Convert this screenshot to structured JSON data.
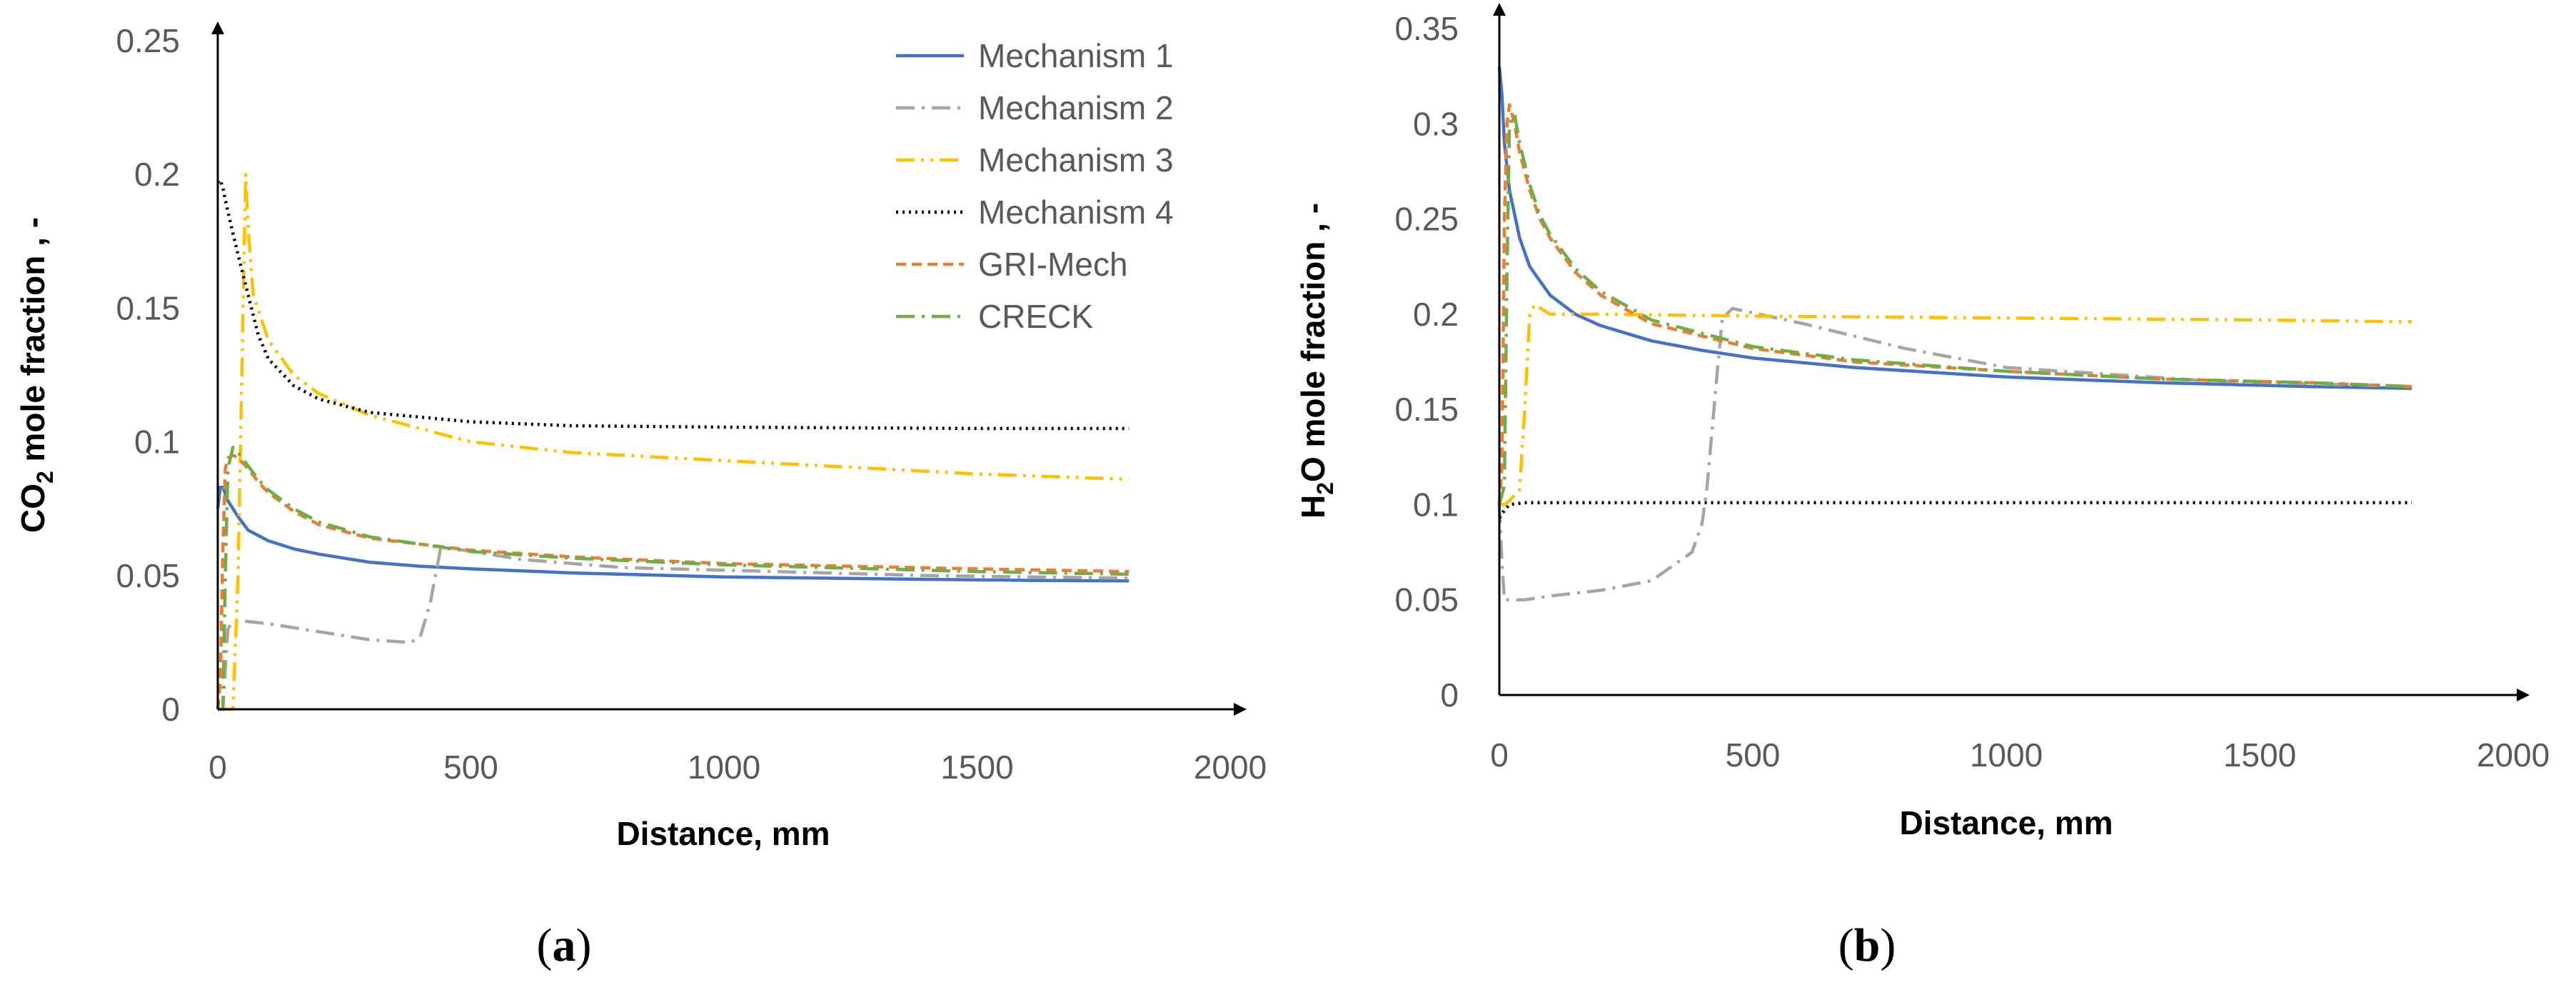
{
  "figure": {
    "panels": [
      {
        "label_open": "(",
        "label_letter": "a",
        "label_close": ")"
      },
      {
        "label_open": "(",
        "label_letter": "b",
        "label_close": ")"
      }
    ]
  },
  "legend": {
    "entries": [
      {
        "name": "Mechanism 1",
        "color": "#4472C4",
        "dash": "solid"
      },
      {
        "name": "Mechanism 2",
        "color": "#A5A5A5",
        "dash": "dashdot"
      },
      {
        "name": "Mechanism 3",
        "color": "#FFC000",
        "dash": "dashdotdot"
      },
      {
        "name": "Mechanism 4",
        "color": "#000000",
        "dash": "dotted"
      },
      {
        "name": "GRI-Mech",
        "color": "#ED7D31",
        "dash": "dashed"
      },
      {
        "name": "CRECK",
        "color": "#70AD47",
        "dash": "dashdot"
      }
    ]
  },
  "chart_data": [
    {
      "type": "line",
      "panel": "a",
      "ylabel_prefix": "CO",
      "ylabel_sub": "2",
      "ylabel_suffix": " mole fraction , -",
      "xlabel": "Distance, mm",
      "xlim": [
        0,
        2000
      ],
      "ylim": [
        0,
        0.25
      ],
      "xticks": [
        0,
        500,
        1000,
        1500,
        2000
      ],
      "xtick_labels": [
        "0",
        "500",
        "1000",
        "1500",
        "2000"
      ],
      "yticks": [
        0,
        0.05,
        0.1,
        0.15,
        0.2,
        0.25
      ],
      "ytick_labels": [
        "0",
        "0.05",
        "0.1",
        "0.15",
        "0.2",
        "0.25"
      ],
      "grid": false,
      "legend_position": "top-right",
      "series": [
        {
          "name": "Mechanism 1",
          "x": [
            0,
            5,
            10,
            20,
            40,
            60,
            100,
            150,
            200,
            300,
            400,
            500,
            700,
            1000,
            1300,
            1600,
            1800
          ],
          "y": [
            0.075,
            0.083,
            0.083,
            0.078,
            0.072,
            0.067,
            0.063,
            0.06,
            0.058,
            0.055,
            0.0535,
            0.0525,
            0.051,
            0.0495,
            0.0488,
            0.0482,
            0.048
          ]
        },
        {
          "name": "Mechanism 2",
          "x": [
            0,
            10,
            20,
            30,
            50,
            100,
            200,
            300,
            380,
            400,
            420,
            440,
            470,
            600,
            800,
            1000,
            1400,
            1800
          ],
          "y": [
            0,
            0,
            0.03,
            0.033,
            0.033,
            0.032,
            0.029,
            0.026,
            0.025,
            0.027,
            0.04,
            0.06,
            0.06,
            0.056,
            0.053,
            0.052,
            0.05,
            0.049
          ]
        },
        {
          "name": "Mechanism 3",
          "x": [
            0,
            30,
            40,
            50,
            55,
            60,
            70,
            100,
            150,
            200,
            300,
            500,
            700,
            1000,
            1500,
            1800
          ],
          "y": [
            0,
            0,
            0.05,
            0.15,
            0.2,
            0.18,
            0.155,
            0.138,
            0.125,
            0.118,
            0.11,
            0.1,
            0.096,
            0.093,
            0.088,
            0.086
          ]
        },
        {
          "name": "Mechanism 4",
          "x": [
            0,
            5,
            10,
            20,
            40,
            60,
            80,
            100,
            150,
            200,
            300,
            500,
            700,
            1000,
            1500,
            1800
          ],
          "y": [
            0.197,
            0.198,
            0.195,
            0.186,
            0.17,
            0.155,
            0.14,
            0.131,
            0.121,
            0.116,
            0.111,
            0.1075,
            0.106,
            0.1055,
            0.105,
            0.105
          ]
        },
        {
          "name": "GRI-Mech",
          "x": [
            0,
            5,
            10,
            15,
            20,
            30,
            40,
            60,
            80,
            100,
            150,
            200,
            300,
            500,
            700,
            1000,
            1500,
            1800
          ],
          "y": [
            0,
            0.01,
            0.06,
            0.09,
            0.094,
            0.095,
            0.094,
            0.09,
            0.085,
            0.081,
            0.074,
            0.069,
            0.064,
            0.0595,
            0.057,
            0.0545,
            0.0525,
            0.0515
          ]
        },
        {
          "name": "CRECK",
          "x": [
            0,
            10,
            15,
            20,
            30,
            40,
            60,
            80,
            100,
            150,
            200,
            300,
            500,
            700,
            1000,
            1500,
            1800
          ],
          "y": [
            0,
            0,
            0.05,
            0.09,
            0.098,
            0.096,
            0.091,
            0.086,
            0.082,
            0.075,
            0.07,
            0.0645,
            0.059,
            0.0565,
            0.054,
            0.0515,
            0.0505
          ]
        }
      ]
    },
    {
      "type": "line",
      "panel": "b",
      "ylabel_prefix": "H",
      "ylabel_sub": "2",
      "ylabel_suffix": "O mole fraction , -",
      "xlabel": "Distance, mm",
      "xlim": [
        0,
        2000
      ],
      "ylim": [
        0,
        0.35
      ],
      "xticks": [
        0,
        500,
        1000,
        1500,
        2000
      ],
      "xtick_labels": [
        "0",
        "500",
        "1000",
        "1500",
        "2000"
      ],
      "yticks": [
        0,
        0.05,
        0.1,
        0.15,
        0.2,
        0.25,
        0.3,
        0.35
      ],
      "ytick_labels": [
        "0",
        "0.05",
        "0.1",
        "0.15",
        "0.2",
        "0.25",
        "0.3",
        "0.35"
      ],
      "grid": false,
      "series": [
        {
          "name": "Mechanism 1",
          "x": [
            0,
            5,
            10,
            20,
            40,
            60,
            100,
            150,
            200,
            300,
            400,
            500,
            700,
            1000,
            1300,
            1600,
            1800
          ],
          "y": [
            0.33,
            0.315,
            0.29,
            0.265,
            0.24,
            0.225,
            0.21,
            0.2,
            0.194,
            0.186,
            0.181,
            0.177,
            0.172,
            0.167,
            0.164,
            0.162,
            0.161
          ]
        },
        {
          "name": "Mechanism 2",
          "x": [
            0,
            5,
            10,
            20,
            50,
            100,
            200,
            300,
            380,
            400,
            410,
            420,
            430,
            440,
            460,
            600,
            800,
            1000,
            1400,
            1800
          ],
          "y": [
            0.1,
            0.07,
            0.05,
            0.05,
            0.05,
            0.052,
            0.055,
            0.06,
            0.075,
            0.09,
            0.11,
            0.14,
            0.17,
            0.198,
            0.203,
            0.195,
            0.182,
            0.172,
            0.165,
            0.162
          ]
        },
        {
          "name": "Mechanism 3",
          "x": [
            0,
            10,
            20,
            40,
            50,
            60,
            70,
            100,
            200,
            500,
            1000,
            1500,
            1800
          ],
          "y": [
            0.1,
            0.1,
            0.102,
            0.108,
            0.15,
            0.2,
            0.205,
            0.2,
            0.2,
            0.199,
            0.198,
            0.197,
            0.196
          ]
        },
        {
          "name": "Mechanism 4",
          "x": [
            0,
            10,
            20,
            50,
            100,
            200,
            500,
            1000,
            1500,
            1800
          ],
          "y": [
            0.093,
            0.097,
            0.1,
            0.101,
            0.101,
            0.101,
            0.101,
            0.101,
            0.101,
            0.101
          ]
        },
        {
          "name": "GRI-Mech",
          "x": [
            0,
            5,
            10,
            15,
            20,
            30,
            40,
            60,
            80,
            100,
            150,
            200,
            300,
            500,
            700,
            1000,
            1300,
            1600,
            1800
          ],
          "y": [
            0.1,
            0.12,
            0.25,
            0.3,
            0.31,
            0.3,
            0.285,
            0.265,
            0.25,
            0.24,
            0.222,
            0.21,
            0.195,
            0.182,
            0.175,
            0.17,
            0.166,
            0.164,
            0.162
          ]
        },
        {
          "name": "CRECK",
          "x": [
            0,
            10,
            15,
            20,
            30,
            40,
            60,
            80,
            100,
            150,
            200,
            300,
            500,
            700,
            1000,
            1300,
            1600,
            1800
          ],
          "y": [
            0.1,
            0.11,
            0.22,
            0.3,
            0.305,
            0.29,
            0.268,
            0.252,
            0.242,
            0.224,
            0.212,
            0.197,
            0.183,
            0.176,
            0.17,
            0.166,
            0.164,
            0.162
          ]
        }
      ]
    }
  ]
}
